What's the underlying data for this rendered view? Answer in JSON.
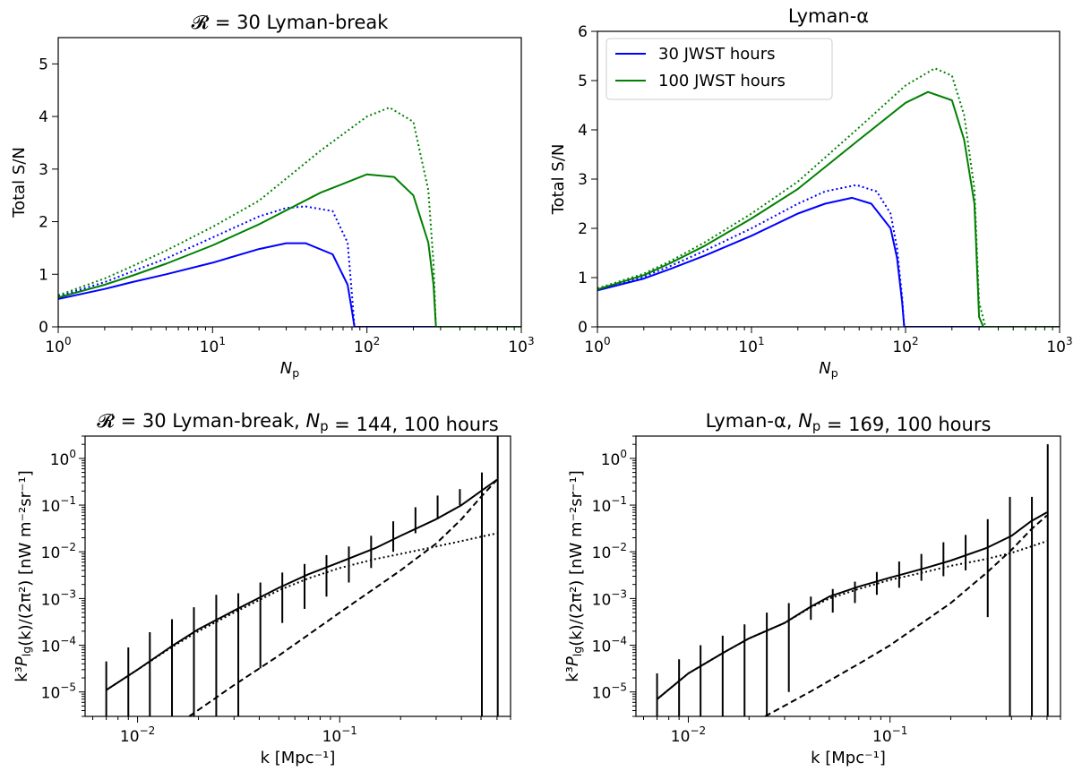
{
  "figure": {
    "legend": [
      {
        "label": "30 JWST hours",
        "color": "#0000ff"
      },
      {
        "label": "100 JWST hours",
        "color": "#008000"
      }
    ],
    "line_styles": {
      "solid": "",
      "dotted": ""
    }
  },
  "chart_data": [
    {
      "type": "line",
      "title": "𝓡 = 30 Lyman-break",
      "xlabel": "N_p",
      "ylabel": "Total S/N",
      "xscale": "log",
      "xlim": [
        1,
        1000
      ],
      "ylim": [
        0,
        5.5
      ],
      "yticks": [
        0,
        1,
        2,
        3,
        4,
        5
      ],
      "xticks": [
        "10^0",
        "10^1",
        "10^2",
        "10^3"
      ],
      "grid": false,
      "series": [
        {
          "color": "#0000ff",
          "style": "solid",
          "x": [
            1,
            2,
            3,
            5,
            10,
            20,
            30,
            40,
            60,
            75,
            80,
            83,
            1000
          ],
          "y": [
            0.53,
            0.72,
            0.85,
            1.0,
            1.22,
            1.48,
            1.59,
            1.59,
            1.38,
            0.8,
            0.3,
            0,
            0
          ]
        },
        {
          "color": "#0000ff",
          "style": "dotted",
          "x": [
            1,
            2,
            3,
            5,
            10,
            20,
            30,
            40,
            60,
            75,
            80,
            83,
            1000
          ],
          "y": [
            0.58,
            0.85,
            1.05,
            1.3,
            1.7,
            2.1,
            2.26,
            2.29,
            2.2,
            1.6,
            0.6,
            0,
            0
          ]
        },
        {
          "color": "#008000",
          "style": "solid",
          "x": [
            1,
            2,
            3,
            5,
            10,
            20,
            50,
            100,
            150,
            200,
            250,
            270,
            280,
            1000
          ],
          "y": [
            0.56,
            0.8,
            0.97,
            1.2,
            1.55,
            1.95,
            2.55,
            2.9,
            2.85,
            2.5,
            1.6,
            0.8,
            0,
            0
          ]
        },
        {
          "color": "#008000",
          "style": "dotted",
          "x": [
            1,
            2,
            3,
            5,
            10,
            20,
            50,
            100,
            140,
            200,
            250,
            270,
            280,
            1000
          ],
          "y": [
            0.6,
            0.92,
            1.15,
            1.45,
            1.9,
            2.4,
            3.35,
            4.0,
            4.17,
            3.9,
            2.6,
            1.2,
            0,
            0
          ]
        }
      ]
    },
    {
      "type": "line",
      "title": "Lyman-α",
      "xlabel": "N_p",
      "ylabel": "Total S/N",
      "xscale": "log",
      "xlim": [
        1,
        1000
      ],
      "ylim": [
        0,
        6
      ],
      "yticks": [
        0,
        1,
        2,
        3,
        4,
        5,
        6
      ],
      "xticks": [
        "10^0",
        "10^1",
        "10^2",
        "10^3"
      ],
      "grid": false,
      "legend_position": "top-left",
      "series": [
        {
          "name": "30 JWST hours",
          "color": "#0000ff",
          "style": "solid",
          "x": [
            1,
            2,
            3,
            5,
            10,
            20,
            30,
            45,
            60,
            80,
            88,
            95,
            98,
            1000
          ],
          "y": [
            0.74,
            0.98,
            1.18,
            1.45,
            1.85,
            2.3,
            2.5,
            2.62,
            2.5,
            2.0,
            1.4,
            0.5,
            0,
            0
          ]
        },
        {
          "name": "",
          "color": "#0000ff",
          "style": "dotted",
          "x": [
            1,
            2,
            3,
            5,
            10,
            20,
            30,
            48,
            65,
            80,
            88,
            95,
            98,
            1000
          ],
          "y": [
            0.76,
            1.02,
            1.24,
            1.55,
            2.0,
            2.5,
            2.75,
            2.88,
            2.75,
            2.3,
            1.6,
            0.6,
            0,
            0
          ]
        },
        {
          "name": "100 JWST hours",
          "color": "#008000",
          "style": "solid",
          "x": [
            1,
            2,
            3,
            5,
            10,
            20,
            50,
            100,
            140,
            200,
            240,
            280,
            300,
            320,
            1000
          ],
          "y": [
            0.76,
            1.05,
            1.3,
            1.65,
            2.2,
            2.8,
            3.8,
            4.55,
            4.77,
            4.6,
            3.8,
            2.5,
            0.2,
            0,
            0
          ]
        },
        {
          "name": "",
          "color": "#008000",
          "style": "dotted",
          "x": [
            1,
            2,
            3,
            5,
            10,
            20,
            50,
            100,
            155,
            200,
            240,
            280,
            300,
            330,
            1000
          ],
          "y": [
            0.78,
            1.08,
            1.34,
            1.72,
            2.3,
            2.95,
            4.05,
            4.9,
            5.25,
            5.1,
            4.3,
            2.8,
            0.5,
            0,
            0
          ]
        }
      ]
    },
    {
      "type": "line",
      "title": "𝓡 = 30 Lyman-break, N_p = 144, 100 hours",
      "xlabel": "k [Mpc⁻¹]",
      "ylabel": "k³P_lg(k)/(2π²) [nW m⁻²sr⁻¹]",
      "xscale": "log",
      "yscale": "log",
      "xlim": [
        0.0055,
        0.7
      ],
      "ylim": [
        3e-06,
        3
      ],
      "xticks": [
        "10^-2",
        "10^-1"
      ],
      "yticks": [
        "10^-5",
        "10^-4",
        "10^-3",
        "10^-2",
        "10^-1",
        "10^0"
      ],
      "grid": false,
      "series": [
        {
          "style": "solid",
          "color": "#000000",
          "x": [
            0.007,
            0.01,
            0.015,
            0.02,
            0.03,
            0.05,
            0.07,
            0.1,
            0.15,
            0.2,
            0.3,
            0.4,
            0.5,
            0.6
          ],
          "y": [
            1.1e-05,
            3e-05,
            0.0001,
            0.00022,
            0.00055,
            0.0017,
            0.0033,
            0.006,
            0.012,
            0.022,
            0.05,
            0.1,
            0.2,
            0.35
          ]
        },
        {
          "style": "dotted",
          "color": "#000000",
          "x": [
            0.007,
            0.01,
            0.015,
            0.02,
            0.03,
            0.05,
            0.07,
            0.1,
            0.15,
            0.2,
            0.3,
            0.4,
            0.5,
            0.6
          ],
          "y": [
            1.1e-05,
            3e-05,
            9.5e-05,
            0.0002,
            0.0005,
            0.0015,
            0.0027,
            0.0045,
            0.007,
            0.009,
            0.013,
            0.017,
            0.021,
            0.025
          ]
        },
        {
          "style": "dashed",
          "color": "#000000",
          "x": [
            0.018,
            0.03,
            0.05,
            0.1,
            0.2,
            0.3,
            0.4,
            0.5,
            0.6
          ],
          "y": [
            3e-06,
            1.4e-05,
            6e-05,
            0.0005,
            0.004,
            0.015,
            0.05,
            0.15,
            0.35
          ]
        }
      ],
      "error_bars": {
        "x": [
          0.007,
          0.009,
          0.0115,
          0.0148,
          0.019,
          0.0245,
          0.0315,
          0.0405,
          0.052,
          0.067,
          0.086,
          0.111,
          0.143,
          0.184,
          0.237,
          0.305,
          0.393,
          0.505,
          0.605
        ],
        "lower": [
          3e-06,
          3e-06,
          3e-06,
          3e-06,
          3e-06,
          3e-06,
          3e-06,
          3.2e-05,
          0.0003,
          0.0006,
          0.0011,
          0.0022,
          0.0045,
          0.01,
          0.025,
          0.05,
          0.1,
          3e-06,
          3e-06
        ],
        "upper": [
          4.5e-05,
          9e-05,
          0.00019,
          0.00036,
          0.00065,
          0.0012,
          0.0013,
          0.0022,
          0.0036,
          0.0055,
          0.0085,
          0.013,
          0.022,
          0.045,
          0.09,
          0.16,
          0.22,
          0.5,
          3
        ]
      }
    },
    {
      "type": "line",
      "title": "Lyman-α, N_p = 169, 100 hours",
      "xlabel": "k [Mpc⁻¹]",
      "ylabel": "k³P_lg(k)/(2π²) [nW m⁻²sr⁻¹]",
      "xscale": "log",
      "yscale": "log",
      "xlim": [
        0.0055,
        0.7
      ],
      "ylim": [
        3e-06,
        3
      ],
      "xticks": [
        "10^-2",
        "10^-1"
      ],
      "yticks": [
        "10^-5",
        "10^-4",
        "10^-3",
        "10^-2",
        "10^-1",
        "10^0"
      ],
      "grid": false,
      "series": [
        {
          "style": "solid",
          "color": "#000000",
          "x": [
            0.007,
            0.01,
            0.015,
            0.02,
            0.03,
            0.04,
            0.05,
            0.07,
            0.1,
            0.15,
            0.2,
            0.3,
            0.4,
            0.5,
            0.6
          ],
          "y": [
            7e-06,
            2.5e-05,
            7e-05,
            0.00014,
            0.0003,
            0.00065,
            0.0011,
            0.0018,
            0.0028,
            0.0045,
            0.0065,
            0.012,
            0.022,
            0.045,
            0.07
          ]
        },
        {
          "style": "dotted",
          "color": "#000000",
          "x": [
            0.007,
            0.01,
            0.015,
            0.02,
            0.03,
            0.04,
            0.05,
            0.07,
            0.1,
            0.15,
            0.2,
            0.3,
            0.4,
            0.5,
            0.6
          ],
          "y": [
            7e-06,
            2.5e-05,
            7e-05,
            0.00014,
            0.0003,
            0.00063,
            0.001,
            0.0016,
            0.0025,
            0.0037,
            0.005,
            0.007,
            0.0095,
            0.013,
            0.017
          ]
        },
        {
          "style": "dashed",
          "color": "#000000",
          "x": [
            0.024,
            0.04,
            0.07,
            0.1,
            0.2,
            0.3,
            0.4,
            0.5,
            0.6
          ],
          "y": [
            3e-06,
            1e-05,
            4e-05,
            0.0001,
            0.0008,
            0.0035,
            0.011,
            0.03,
            0.06
          ]
        }
      ],
      "error_bars": {
        "x": [
          0.007,
          0.009,
          0.0115,
          0.0148,
          0.019,
          0.0245,
          0.0315,
          0.0405,
          0.052,
          0.067,
          0.086,
          0.111,
          0.143,
          0.184,
          0.237,
          0.305,
          0.393,
          0.505,
          0.605
        ],
        "lower": [
          3e-06,
          3e-06,
          3e-06,
          3e-06,
          3e-06,
          3e-06,
          1e-05,
          0.00035,
          0.0005,
          0.0008,
          0.0012,
          0.0017,
          0.0024,
          0.003,
          0.004,
          0.0004,
          3e-06,
          3e-06,
          3e-06
        ],
        "upper": [
          2.5e-05,
          5e-05,
          0.0001,
          0.00016,
          0.00028,
          0.0005,
          0.0008,
          0.0011,
          0.0016,
          0.0023,
          0.0037,
          0.0062,
          0.009,
          0.016,
          0.023,
          0.05,
          0.15,
          0.15,
          2
        ]
      }
    }
  ]
}
